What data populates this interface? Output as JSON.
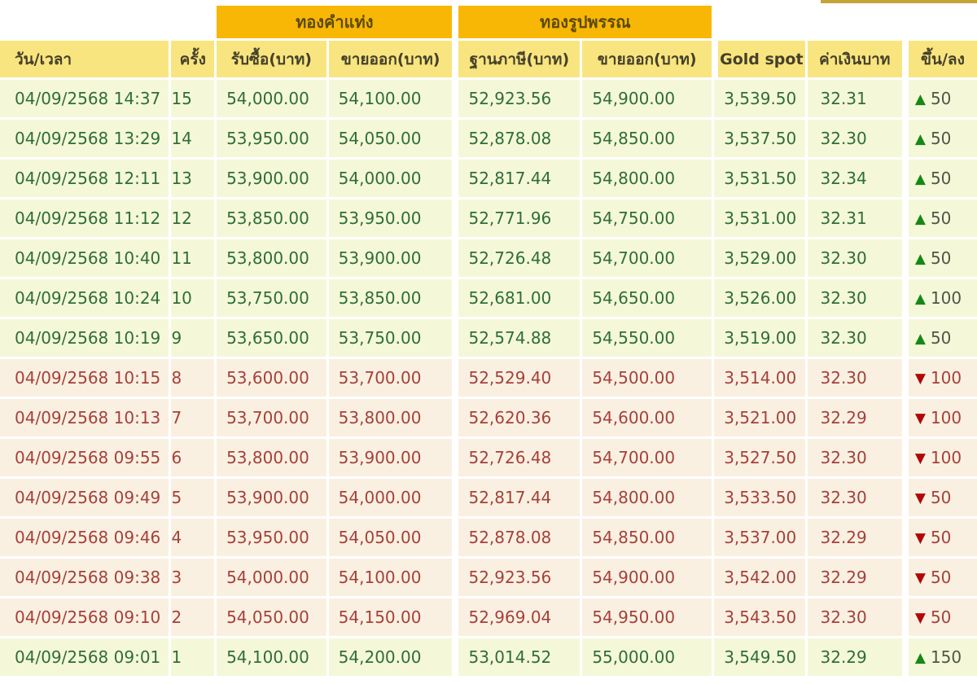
{
  "decor": {
    "top_right_strip_color": "#c4a437"
  },
  "colors": {
    "group_header_bg": "#f8b705",
    "column_header_bg": "#f9e57f",
    "up_row_bg": "#f5f8d8",
    "down_row_bg": "#faf0e1",
    "up_text": "#2f6e38",
    "down_text": "#a5413b",
    "up_arrow": "#178717",
    "down_arrow": "#b00808"
  },
  "icons": {
    "up": "▲",
    "down": "▼"
  },
  "table": {
    "group_headers": [
      {
        "label": "ทองคำแท่ง"
      },
      {
        "label": "ทองรูปพรรณ"
      }
    ],
    "columns": [
      "วัน/เวลา",
      "ครั้ง",
      "รับซื้อ(บาท)",
      "ขายออก(บาท)",
      "ฐานภาษี(บาท)",
      "ขายออก(บาท)",
      "Gold spot",
      "ค่าเงินบาท",
      "ขึ้น/ลง"
    ],
    "rows": [
      {
        "datetime": "04/09/2568 14:37",
        "round": "15",
        "bar_buy": "54,000.00",
        "bar_sell": "54,100.00",
        "orn_tax": "52,923.56",
        "orn_sell": "54,900.00",
        "spot": "3,539.50",
        "baht": "32.31",
        "trend": "up",
        "change": "50"
      },
      {
        "datetime": "04/09/2568 13:29",
        "round": "14",
        "bar_buy": "53,950.00",
        "bar_sell": "54,050.00",
        "orn_tax": "52,878.08",
        "orn_sell": "54,850.00",
        "spot": "3,537.50",
        "baht": "32.30",
        "trend": "up",
        "change": "50"
      },
      {
        "datetime": "04/09/2568 12:11",
        "round": "13",
        "bar_buy": "53,900.00",
        "bar_sell": "54,000.00",
        "orn_tax": "52,817.44",
        "orn_sell": "54,800.00",
        "spot": "3,531.50",
        "baht": "32.34",
        "trend": "up",
        "change": "50"
      },
      {
        "datetime": "04/09/2568 11:12",
        "round": "12",
        "bar_buy": "53,850.00",
        "bar_sell": "53,950.00",
        "orn_tax": "52,771.96",
        "orn_sell": "54,750.00",
        "spot": "3,531.00",
        "baht": "32.31",
        "trend": "up",
        "change": "50"
      },
      {
        "datetime": "04/09/2568 10:40",
        "round": "11",
        "bar_buy": "53,800.00",
        "bar_sell": "53,900.00",
        "orn_tax": "52,726.48",
        "orn_sell": "54,700.00",
        "spot": "3,529.00",
        "baht": "32.30",
        "trend": "up",
        "change": "50"
      },
      {
        "datetime": "04/09/2568 10:24",
        "round": "10",
        "bar_buy": "53,750.00",
        "bar_sell": "53,850.00",
        "orn_tax": "52,681.00",
        "orn_sell": "54,650.00",
        "spot": "3,526.00",
        "baht": "32.30",
        "trend": "up",
        "change": "100"
      },
      {
        "datetime": "04/09/2568 10:19",
        "round": "9",
        "bar_buy": "53,650.00",
        "bar_sell": "53,750.00",
        "orn_tax": "52,574.88",
        "orn_sell": "54,550.00",
        "spot": "3,519.00",
        "baht": "32.30",
        "trend": "up",
        "change": "50"
      },
      {
        "datetime": "04/09/2568 10:15",
        "round": "8",
        "bar_buy": "53,600.00",
        "bar_sell": "53,700.00",
        "orn_tax": "52,529.40",
        "orn_sell": "54,500.00",
        "spot": "3,514.00",
        "baht": "32.30",
        "trend": "down",
        "change": "100"
      },
      {
        "datetime": "04/09/2568 10:13",
        "round": "7",
        "bar_buy": "53,700.00",
        "bar_sell": "53,800.00",
        "orn_tax": "52,620.36",
        "orn_sell": "54,600.00",
        "spot": "3,521.00",
        "baht": "32.29",
        "trend": "down",
        "change": "100"
      },
      {
        "datetime": "04/09/2568 09:55",
        "round": "6",
        "bar_buy": "53,800.00",
        "bar_sell": "53,900.00",
        "orn_tax": "52,726.48",
        "orn_sell": "54,700.00",
        "spot": "3,527.50",
        "baht": "32.30",
        "trend": "down",
        "change": "100"
      },
      {
        "datetime": "04/09/2568 09:49",
        "round": "5",
        "bar_buy": "53,900.00",
        "bar_sell": "54,000.00",
        "orn_tax": "52,817.44",
        "orn_sell": "54,800.00",
        "spot": "3,533.50",
        "baht": "32.30",
        "trend": "down",
        "change": "50"
      },
      {
        "datetime": "04/09/2568 09:46",
        "round": "4",
        "bar_buy": "53,950.00",
        "bar_sell": "54,050.00",
        "orn_tax": "52,878.08",
        "orn_sell": "54,850.00",
        "spot": "3,537.00",
        "baht": "32.29",
        "trend": "down",
        "change": "50"
      },
      {
        "datetime": "04/09/2568 09:38",
        "round": "3",
        "bar_buy": "54,000.00",
        "bar_sell": "54,100.00",
        "orn_tax": "52,923.56",
        "orn_sell": "54,900.00",
        "spot": "3,542.00",
        "baht": "32.29",
        "trend": "down",
        "change": "50"
      },
      {
        "datetime": "04/09/2568 09:10",
        "round": "2",
        "bar_buy": "54,050.00",
        "bar_sell": "54,150.00",
        "orn_tax": "52,969.04",
        "orn_sell": "54,950.00",
        "spot": "3,543.50",
        "baht": "32.30",
        "trend": "down",
        "change": "50"
      },
      {
        "datetime": "04/09/2568 09:01",
        "round": "1",
        "bar_buy": "54,100.00",
        "bar_sell": "54,200.00",
        "orn_tax": "53,014.52",
        "orn_sell": "55,000.00",
        "spot": "3,549.50",
        "baht": "32.29",
        "trend": "up",
        "change": "150"
      }
    ]
  }
}
